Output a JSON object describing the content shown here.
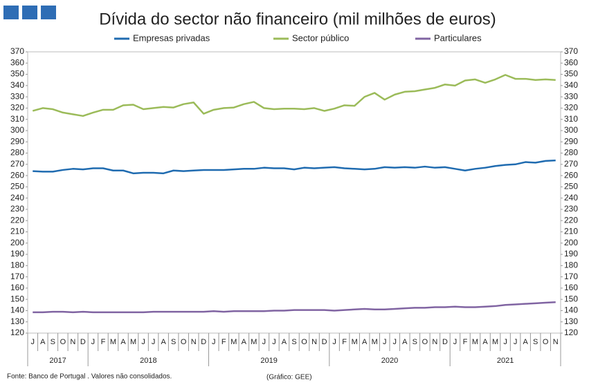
{
  "chart_data": {
    "type": "line",
    "title": "Dívida do sector não financeiro (mil milhões de euros)",
    "categories": [
      "J",
      "A",
      "S",
      "O",
      "N",
      "D",
      "J",
      "F",
      "M",
      "A",
      "M",
      "J",
      "J",
      "A",
      "S",
      "O",
      "N",
      "D",
      "J",
      "F",
      "M",
      "A",
      "M",
      "J",
      "J",
      "A",
      "S",
      "O",
      "N",
      "D",
      "J",
      "F",
      "M",
      "A",
      "M",
      "J",
      "J",
      "A",
      "S",
      "O",
      "N",
      "D",
      "J",
      "F",
      "M",
      "A",
      "M",
      "J",
      "J",
      "A",
      "S",
      "O",
      "N"
    ],
    "years": [
      "2017",
      null,
      null,
      null,
      null,
      null,
      "2018",
      null,
      null,
      null,
      null,
      null,
      null,
      null,
      null,
      null,
      null,
      null,
      "2019",
      null,
      null,
      null,
      null,
      null,
      null,
      null,
      null,
      null,
      null,
      null,
      "2020",
      null,
      null,
      null,
      null,
      null,
      null,
      null,
      null,
      null,
      null,
      null,
      "2021",
      null,
      null,
      null,
      null,
      null,
      null,
      null,
      null,
      null,
      null
    ],
    "series": [
      {
        "name": "Empresas privadas",
        "color": "#1f6bb0",
        "values": [
          264,
          263.5,
          263.5,
          265,
          266,
          265.5,
          266.5,
          266.5,
          264.5,
          264.5,
          262,
          262.5,
          262.5,
          262,
          264.5,
          264,
          264.5,
          265,
          265,
          265,
          265.5,
          266,
          266,
          267,
          266.5,
          266.5,
          265.5,
          267,
          266.5,
          267,
          267.5,
          266.5,
          266,
          265.5,
          266,
          267.5,
          267,
          267.5,
          267,
          268,
          267,
          267.5,
          266,
          264.5,
          266,
          267,
          268.5,
          269.5,
          270,
          272,
          271.5,
          273,
          273.5
        ]
      },
      {
        "name": "Sector público",
        "color": "#9bbb59",
        "values": [
          317.5,
          320,
          319,
          316,
          314.5,
          313,
          316,
          318.5,
          318.5,
          322.5,
          323,
          319,
          320,
          321,
          320.5,
          323.5,
          325,
          315,
          318.5,
          320,
          320.5,
          323.5,
          325.5,
          320,
          319,
          319.5,
          319.5,
          319,
          320,
          317.5,
          319.5,
          322.5,
          322,
          330,
          333.5,
          327.5,
          332,
          334.5,
          335,
          336.5,
          338,
          341,
          340,
          344.5,
          345.5,
          342.5,
          345.5,
          349.5,
          346,
          346,
          345,
          345.5,
          345
        ]
      },
      {
        "name": "Particulares",
        "color": "#8064a2",
        "values": [
          138.5,
          138.5,
          139,
          139,
          138.5,
          139,
          138.5,
          138.5,
          138.5,
          138.5,
          138.5,
          138.5,
          139,
          139,
          139,
          139,
          139,
          139,
          139.5,
          139,
          139.5,
          139.5,
          139.5,
          139.5,
          140,
          140,
          140.5,
          140.5,
          140.5,
          140.5,
          140,
          140.5,
          141,
          141.5,
          141,
          141,
          141.5,
          142,
          142.5,
          142.5,
          143,
          143,
          143.5,
          143,
          143,
          143.5,
          144,
          145,
          145.5,
          146,
          146.5,
          147,
          147.5
        ]
      }
    ],
    "ylim": [
      120,
      370
    ],
    "yticks": [
      120,
      130,
      140,
      150,
      160,
      170,
      180,
      190,
      200,
      210,
      220,
      230,
      240,
      250,
      260,
      270,
      280,
      290,
      300,
      310,
      320,
      330,
      340,
      350,
      360,
      370
    ],
    "y2lim": [
      120,
      370
    ],
    "y2ticks": [
      120,
      130,
      140,
      150,
      160,
      170,
      180,
      190,
      200,
      210,
      220,
      230,
      240,
      250,
      260,
      270,
      280,
      290,
      300,
      310,
      320,
      330,
      340,
      350,
      360,
      370
    ],
    "source": "Fonte: Banco de Portugal . Valores não consolidados.",
    "credit": "(Gráfico: GEE)"
  }
}
